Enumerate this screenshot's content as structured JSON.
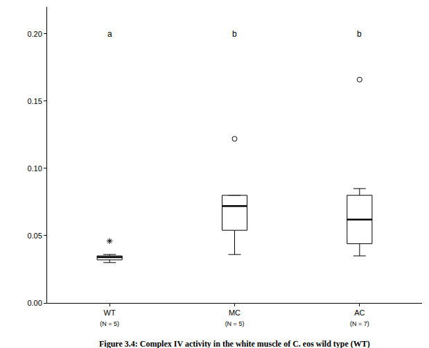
{
  "chart_data": {
    "type": "box",
    "categories": [
      "WT",
      "MC",
      "AC"
    ],
    "n_labels": [
      "(N = 5)",
      "(N = 5)",
      "(N = 7)"
    ],
    "boxes": [
      {
        "lowerfence": 0.03,
        "q1": 0.032,
        "median": 0.034,
        "q3": 0.035,
        "upperfence": 0.036,
        "outliers": [
          0.046
        ],
        "marker": "asterisk"
      },
      {
        "lowerfence": 0.036,
        "q1": 0.054,
        "median": 0.072,
        "q3": 0.08,
        "upperfence": 0.08,
        "outliers": [
          0.122
        ],
        "marker": "circle"
      },
      {
        "lowerfence": 0.035,
        "q1": 0.044,
        "median": 0.062,
        "q3": 0.08,
        "upperfence": 0.085,
        "outliers": [
          0.166
        ],
        "marker": "circle"
      }
    ],
    "color": "#000000",
    "annotations": [
      {
        "category": "WT",
        "y": 0.2,
        "text": "a"
      },
      {
        "category": "MC",
        "y": 0.2,
        "text": "b"
      },
      {
        "category": "AC",
        "y": 0.2,
        "text": "b"
      }
    ],
    "caption": "Figure 3.4: Complex IV activity in the white muscle of C. eos wild type (WT)",
    "ylim": [
      0,
      0.22
    ],
    "yticks": [
      {
        "value": 0,
        "label": "0.00"
      },
      0.05,
      {
        "value": 0.1,
        "label": "0.10"
      },
      0.15,
      {
        "value": 0.2,
        "label": "0.20"
      }
    ],
    "grid": false
  }
}
